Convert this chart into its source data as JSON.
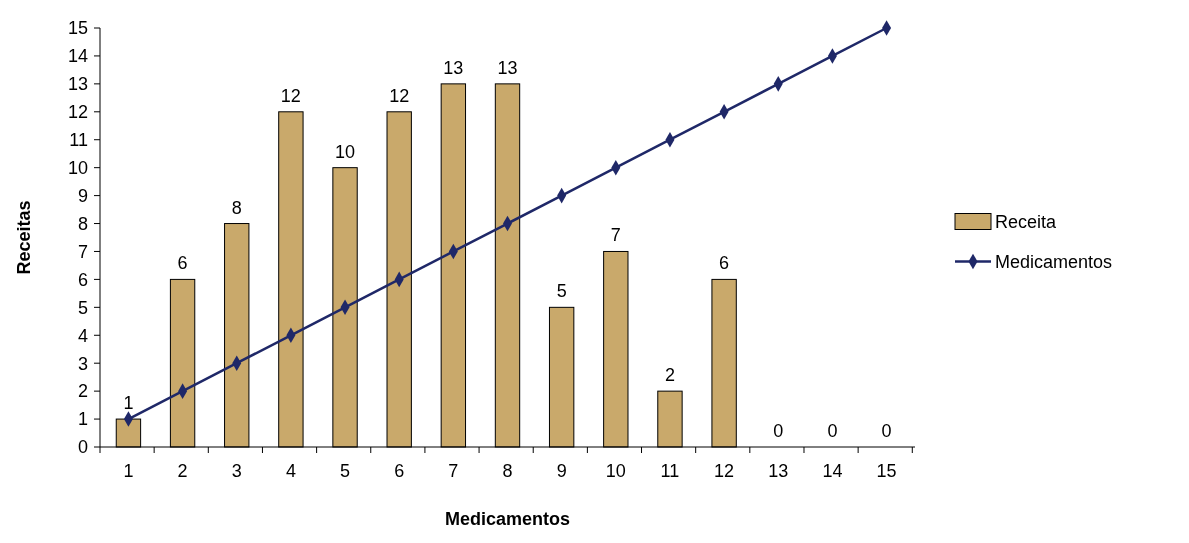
{
  "chart_data": {
    "type": "bar",
    "xlabel": "Medicamentos",
    "ylabel": "Receitas",
    "categories": [
      "1",
      "2",
      "3",
      "4",
      "5",
      "6",
      "7",
      "8",
      "9",
      "10",
      "11",
      "12",
      "13",
      "14",
      "15"
    ],
    "series": [
      {
        "name": "Receita",
        "color": "#c9a96b",
        "values": [
          1,
          6,
          8,
          12,
          10,
          12,
          13,
          13,
          5,
          7,
          2,
          6,
          0,
          0,
          0
        ],
        "value_labels": [
          "1",
          "6",
          "8",
          "12",
          "10",
          "12",
          "13",
          "13",
          "5",
          "7",
          "2",
          "6",
          "0",
          "0",
          "0"
        ]
      },
      {
        "name": "Medicamentos",
        "type": "line",
        "color": "#1f2868",
        "values": [
          1,
          2,
          3,
          4,
          5,
          6,
          7,
          8,
          9,
          10,
          11,
          12,
          13,
          14,
          15
        ]
      }
    ],
    "ylim": [
      0,
      15
    ],
    "yticks": [
      0,
      1,
      2,
      3,
      4,
      5,
      6,
      7,
      8,
      9,
      10,
      11,
      12,
      13,
      14,
      15
    ],
    "grid": false,
    "legend": "right",
    "marker": "diamond",
    "line_style": "solid"
  }
}
